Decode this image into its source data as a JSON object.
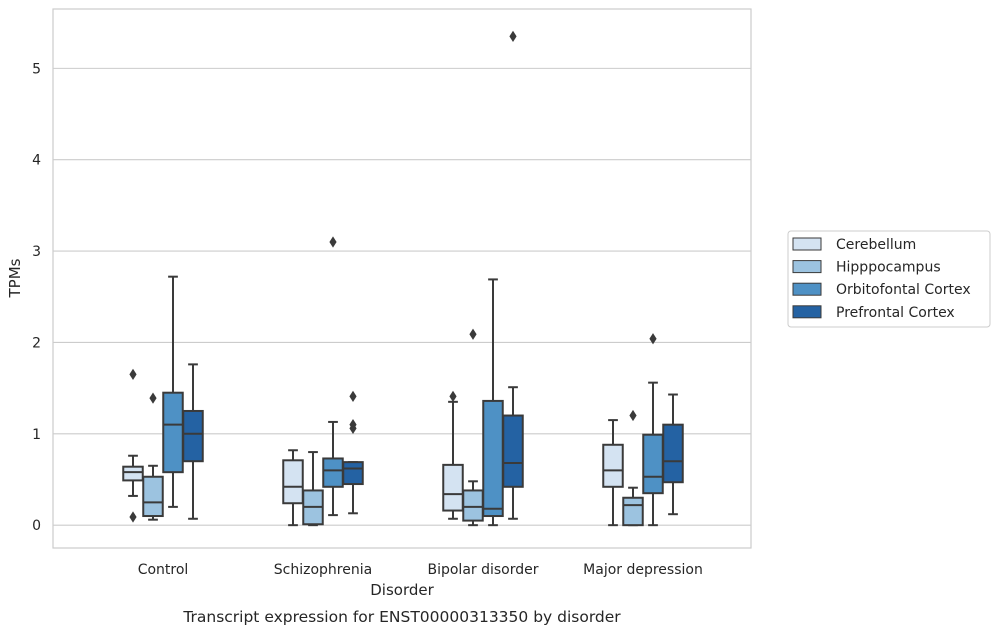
{
  "chart_data": {
    "type": "boxplot",
    "title": "Transcript expression for ENST00000313350 by disorder",
    "xlabel": "Disorder",
    "ylabel": "TPMs",
    "ylim": [
      -0.25,
      5.65
    ],
    "yticks": [
      0,
      1,
      2,
      3,
      4,
      5
    ],
    "grid": "horizontal",
    "legend_position": "right",
    "categories": [
      "Control",
      "Schizophrenia",
      "Bipolar disorder",
      "Major depression"
    ],
    "series": [
      {
        "name": "Cerebellum",
        "color": "#d4e3f2",
        "boxes": [
          {
            "whislo": 0.32,
            "q1": 0.49,
            "med": 0.58,
            "q3": 0.64,
            "whishi": 0.76,
            "fliers": [
              1.65,
              0.09
            ]
          },
          {
            "whislo": 0.0,
            "q1": 0.24,
            "med": 0.42,
            "q3": 0.71,
            "whishi": 0.82,
            "fliers": []
          },
          {
            "whislo": 0.07,
            "q1": 0.16,
            "med": 0.34,
            "q3": 0.66,
            "whishi": 1.35,
            "fliers": [
              1.41
            ]
          },
          {
            "whislo": 0.0,
            "q1": 0.42,
            "med": 0.6,
            "q3": 0.88,
            "whishi": 1.15,
            "fliers": []
          }
        ]
      },
      {
        "name": "Hipppocampus",
        "color": "#9cc3e0",
        "boxes": [
          {
            "whislo": 0.06,
            "q1": 0.1,
            "med": 0.25,
            "q3": 0.53,
            "whishi": 0.65,
            "fliers": [
              1.39
            ]
          },
          {
            "whislo": 0.0,
            "q1": 0.01,
            "med": 0.2,
            "q3": 0.38,
            "whishi": 0.8,
            "fliers": []
          },
          {
            "whislo": 0.0,
            "q1": 0.05,
            "med": 0.2,
            "q3": 0.38,
            "whishi": 0.48,
            "fliers": [
              2.09
            ]
          },
          {
            "whislo": 0.0,
            "q1": 0.0,
            "med": 0.22,
            "q3": 0.3,
            "whishi": 0.41,
            "fliers": [
              1.2
            ]
          }
        ]
      },
      {
        "name": "Orbitofontal Cortex",
        "color": "#4e91c5",
        "boxes": [
          {
            "whislo": 0.2,
            "q1": 0.58,
            "med": 1.1,
            "q3": 1.45,
            "whishi": 2.72,
            "fliers": []
          },
          {
            "whislo": 0.11,
            "q1": 0.42,
            "med": 0.6,
            "q3": 0.73,
            "whishi": 1.13,
            "fliers": [
              3.1
            ]
          },
          {
            "whislo": 0.0,
            "q1": 0.1,
            "med": 0.18,
            "q3": 1.36,
            "whishi": 2.69,
            "fliers": []
          },
          {
            "whislo": 0.0,
            "q1": 0.35,
            "med": 0.53,
            "q3": 0.99,
            "whishi": 1.56,
            "fliers": [
              2.04
            ]
          }
        ]
      },
      {
        "name": "Prefrontal Cortex",
        "color": "#2462a3",
        "boxes": [
          {
            "whislo": 0.07,
            "q1": 0.7,
            "med": 1.0,
            "q3": 1.25,
            "whishi": 1.76,
            "fliers": []
          },
          {
            "whislo": 0.13,
            "q1": 0.45,
            "med": 0.62,
            "q3": 0.69,
            "whishi": 0.69,
            "fliers": [
              1.41,
              1.1,
              1.06
            ]
          },
          {
            "whislo": 0.07,
            "q1": 0.42,
            "med": 0.68,
            "q3": 1.2,
            "whishi": 1.51,
            "fliers": [
              5.35
            ]
          },
          {
            "whislo": 0.12,
            "q1": 0.47,
            "med": 0.7,
            "q3": 1.1,
            "whishi": 1.43,
            "fliers": []
          }
        ]
      }
    ]
  }
}
